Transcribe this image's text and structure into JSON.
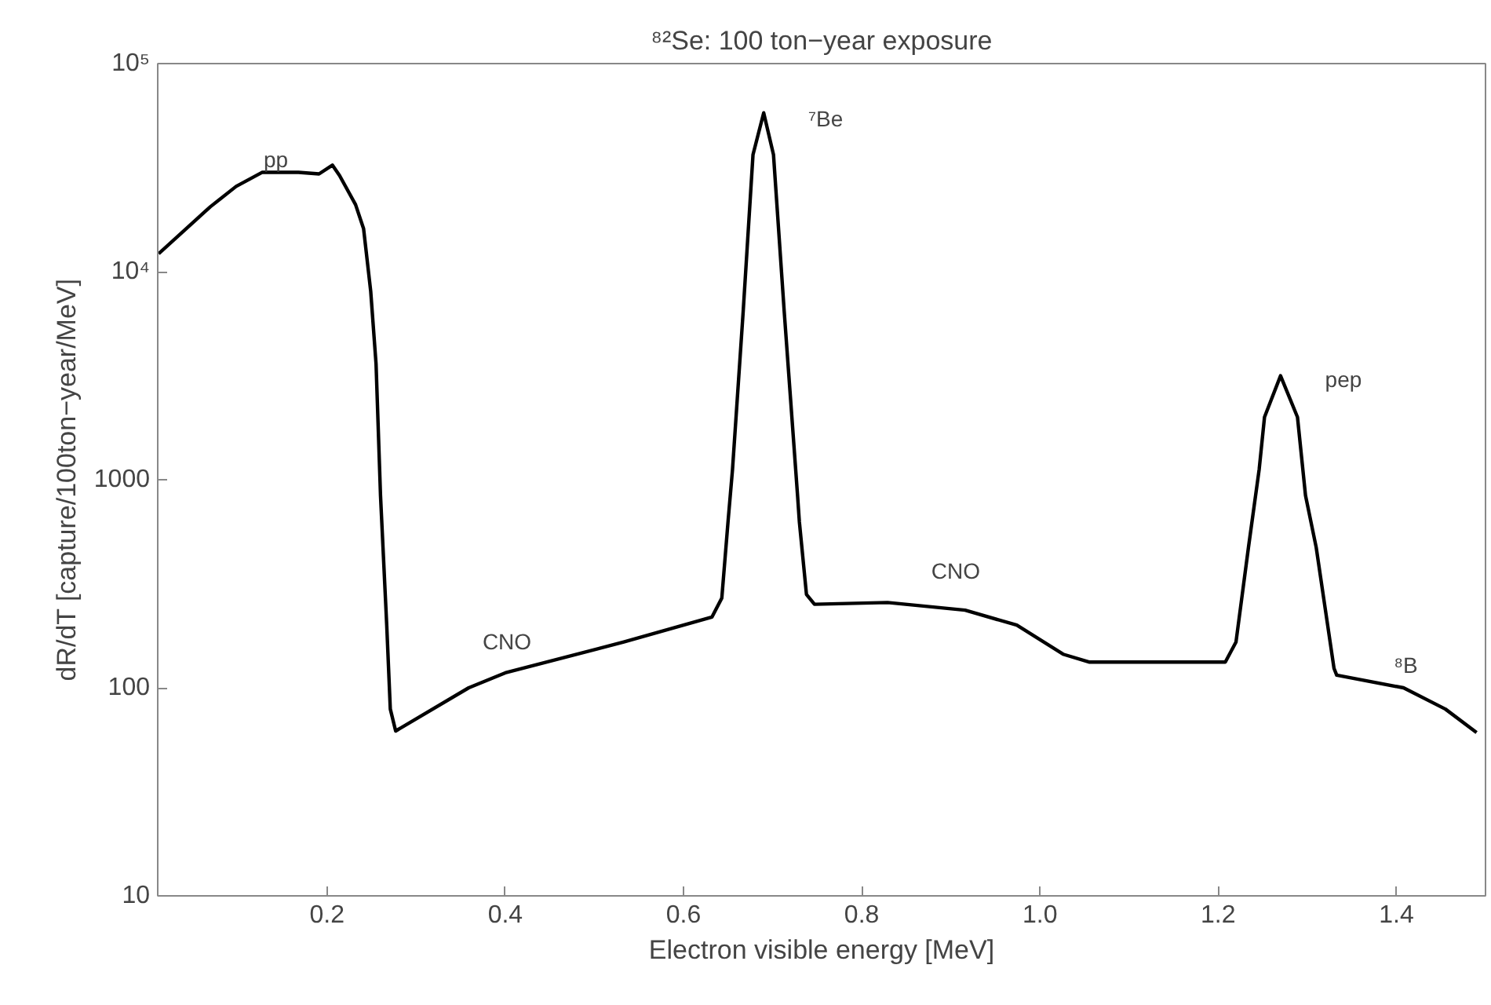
{
  "chart_data": {
    "type": "line",
    "title": "⁸²Se: 100 ton−year exposure",
    "xlabel": "Electron visible energy [MeV]",
    "ylabel": "dR/dT [capture/100ton−year/MeV]",
    "log": "y",
    "grid": false,
    "marker": "none",
    "line_style": "solid",
    "xlim": [
      0.01,
      1.5
    ],
    "ylim": [
      10,
      100000
    ],
    "xticks": [
      0.2,
      0.4,
      0.6,
      0.8,
      {
        "value": 1.0,
        "label": "1.0"
      },
      1.2,
      1.4
    ],
    "yticks": [
      10,
      100,
      1000,
      {
        "value": 10000,
        "label": "10⁴"
      },
      {
        "value": 100000,
        "label": "10⁵"
      }
    ],
    "series": [
      {
        "color": "#000000",
        "x": [
          0.011,
          0.069,
          0.098,
          0.127,
          0.168,
          0.191,
          0.206,
          0.214,
          0.232,
          0.241,
          0.249,
          0.255,
          0.26,
          0.267,
          0.271,
          0.277,
          0.359,
          0.4,
          0.533,
          0.632,
          0.643,
          0.65,
          0.655,
          0.667,
          0.678,
          0.69,
          0.701,
          0.713,
          0.728,
          0.73,
          0.738,
          0.747,
          0.829,
          0.916,
          0.974,
          1.026,
          1.055,
          1.208,
          1.22,
          1.234,
          1.246,
          1.252,
          1.27,
          1.289,
          1.298,
          1.31,
          1.33,
          1.333,
          1.408,
          1.455,
          1.49
        ],
        "values": [
          12200,
          20500,
          25700,
          30000,
          30000,
          29500,
          32500,
          29000,
          21000,
          16100,
          8050,
          3600,
          840,
          199,
          79,
          62,
          100,
          118,
          166,
          219,
          270,
          630,
          1120,
          6450,
          36500,
          58000,
          36500,
          6450,
          840,
          630,
          281,
          252,
          257,
          236,
          200,
          145,
          133,
          133,
          166,
          473,
          1120,
          2000,
          3160,
          2000,
          840,
          473,
          124,
          115,
          100,
          79,
          61
        ]
      }
    ],
    "annotations": [
      "pp",
      "⁷Be",
      "pep",
      "CNO",
      "CNO",
      "⁸B"
    ]
  }
}
